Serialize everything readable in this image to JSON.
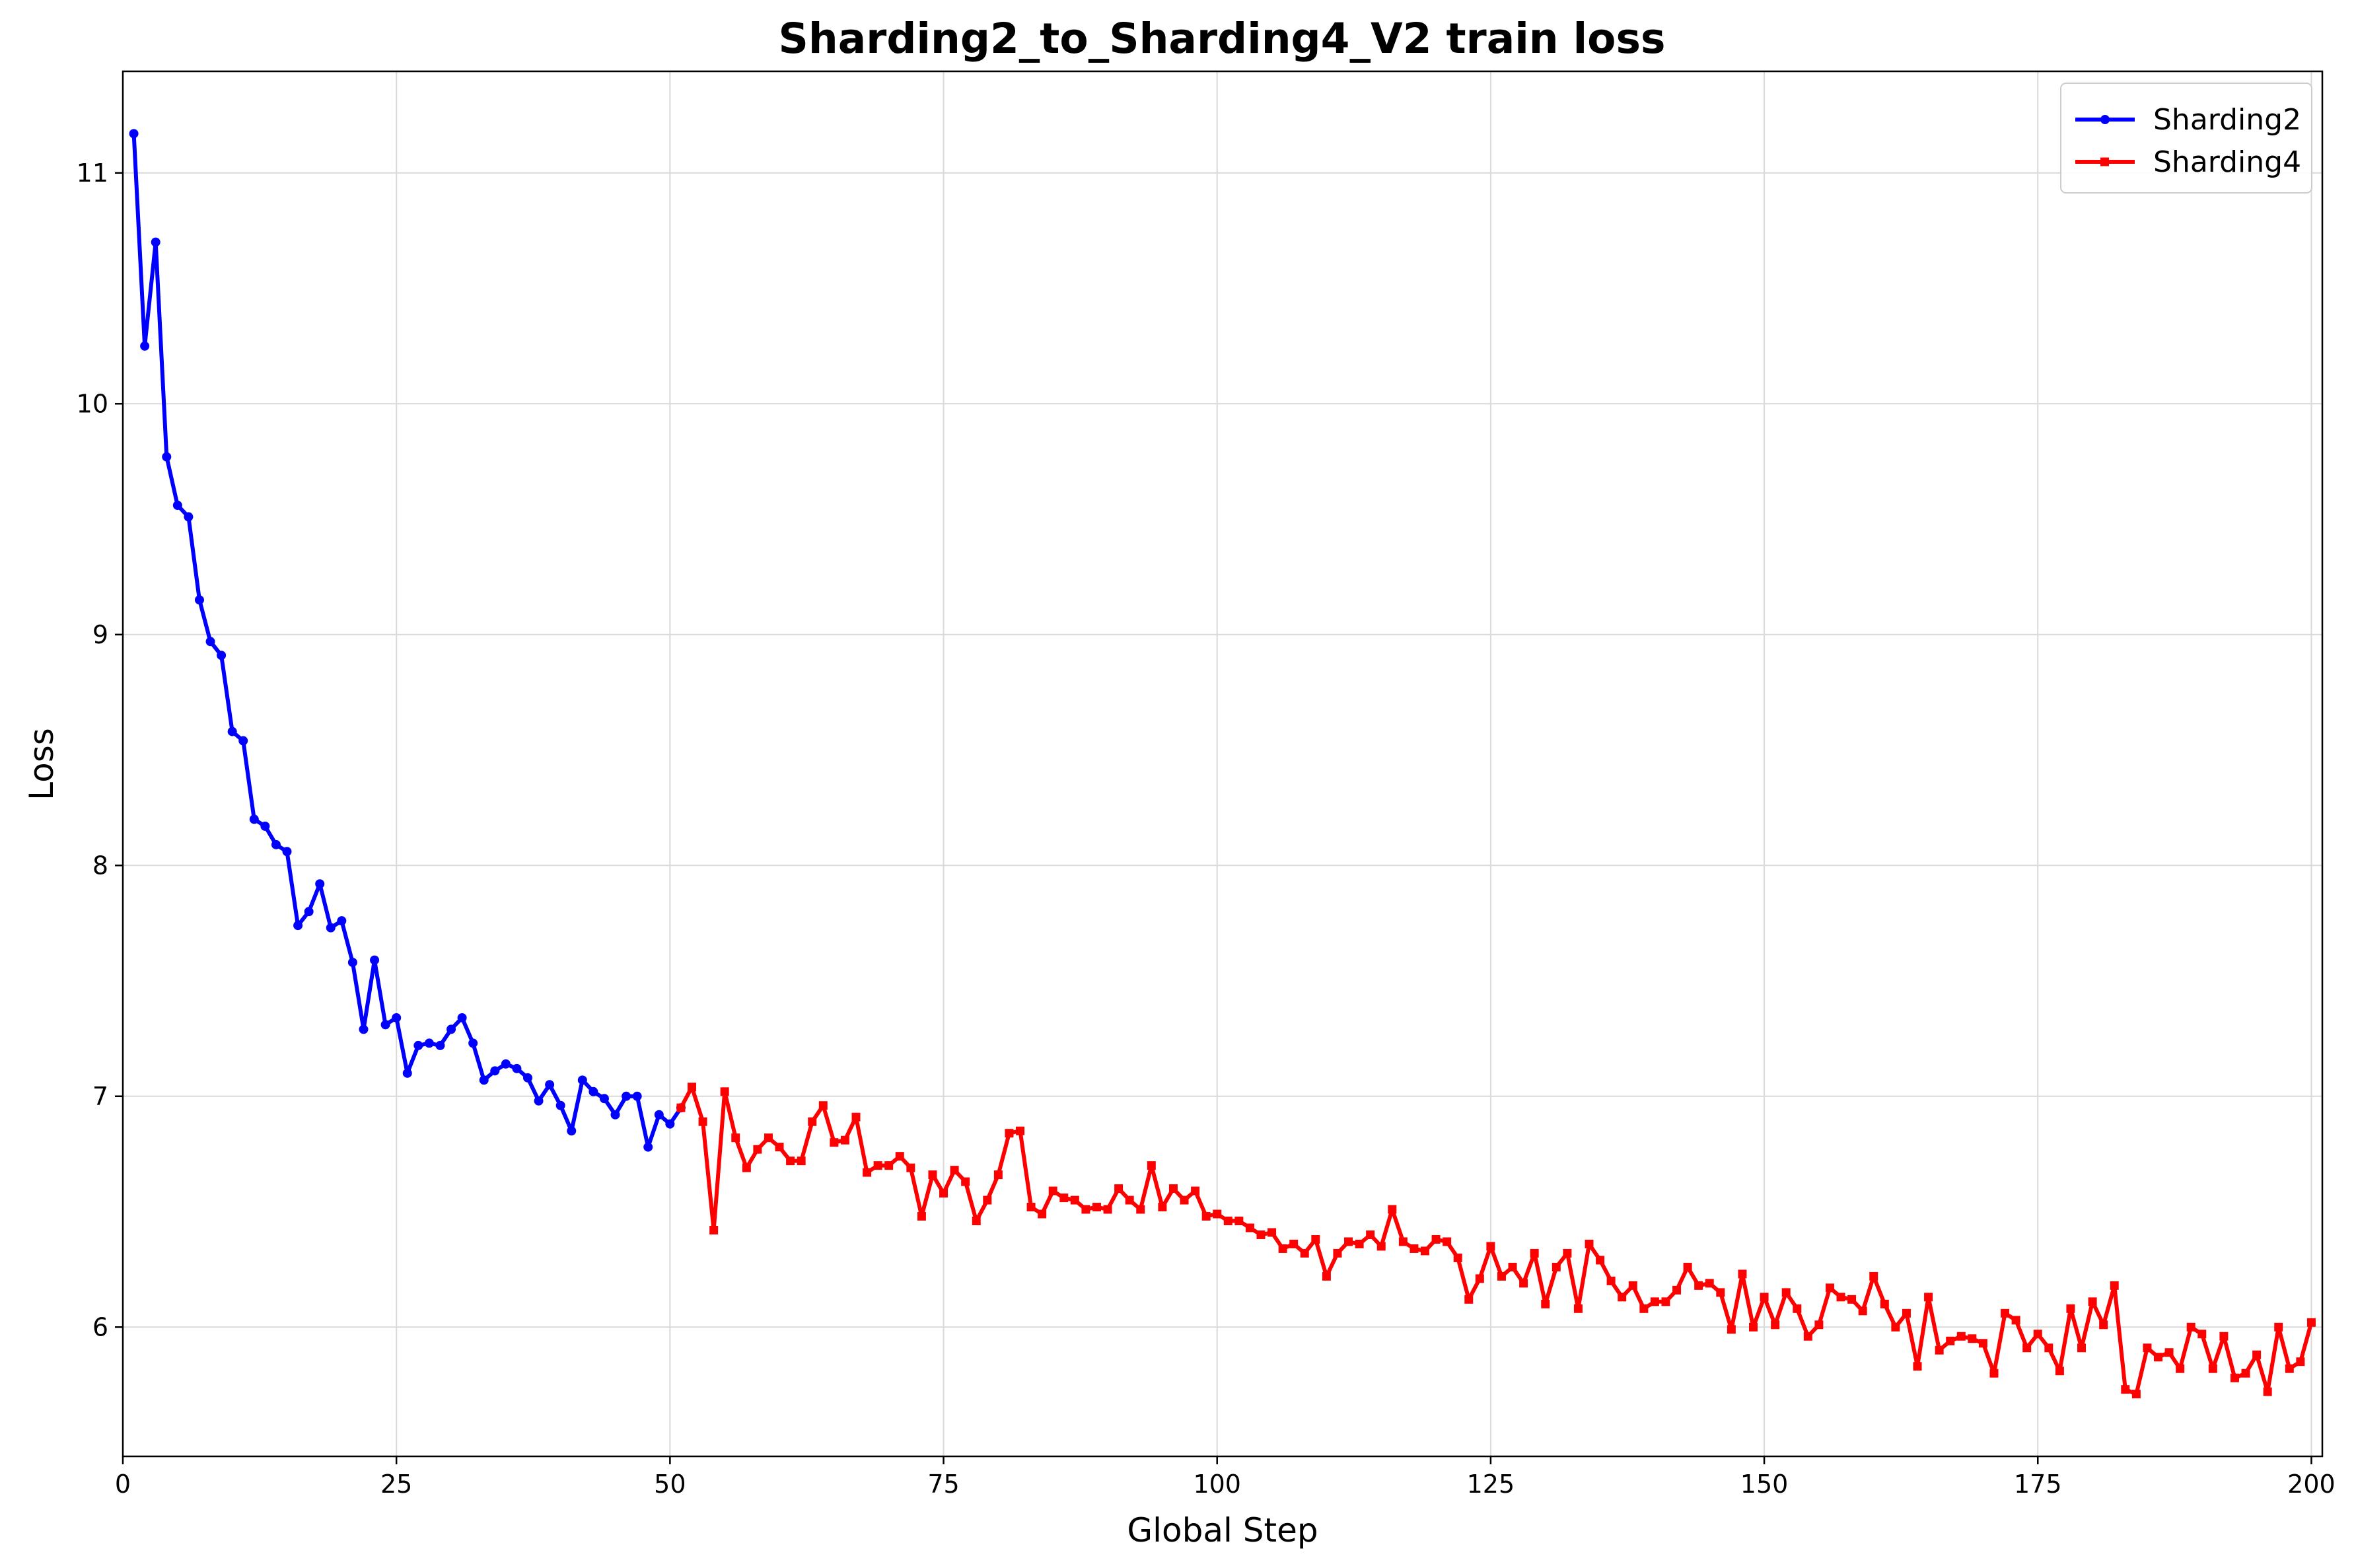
{
  "chart_data": {
    "type": "line",
    "title": "Sharding2_to_Sharding4_V2 train loss",
    "xlabel": "Global Step",
    "ylabel": "Loss",
    "xlim": [
      0,
      201
    ],
    "ylim": [
      5.44,
      11.44
    ],
    "xticks": [
      0,
      25,
      50,
      75,
      100,
      125,
      150,
      175,
      200
    ],
    "yticks": [
      6,
      7,
      8,
      9,
      10,
      11
    ],
    "grid": true,
    "legend_position": "upper right",
    "series": [
      {
        "name": "Sharding2",
        "color": "#0000ff",
        "marker": "circle",
        "x_start": 1,
        "values": [
          11.17,
          10.25,
          10.7,
          9.77,
          9.56,
          9.51,
          9.15,
          8.97,
          8.91,
          8.58,
          8.54,
          8.2,
          8.17,
          8.09,
          8.06,
          7.74,
          7.8,
          7.92,
          7.73,
          7.76,
          7.58,
          7.29,
          7.59,
          7.31,
          7.34,
          7.1,
          7.22,
          7.23,
          7.22,
          7.29,
          7.34,
          7.23,
          7.07,
          7.11,
          7.14,
          7.12,
          7.08,
          6.98,
          7.05,
          6.96,
          6.85,
          7.07,
          7.02,
          6.99,
          6.92,
          7.0,
          7.0,
          6.78,
          6.92,
          6.88,
          6.95
        ]
      },
      {
        "name": "Sharding4",
        "color": "#ff0000",
        "marker": "square",
        "x_start": 51,
        "values": [
          6.95,
          7.04,
          6.89,
          6.42,
          7.02,
          6.82,
          6.69,
          6.77,
          6.82,
          6.78,
          6.72,
          6.72,
          6.89,
          6.96,
          6.8,
          6.81,
          6.91,
          6.67,
          6.7,
          6.7,
          6.74,
          6.69,
          6.48,
          6.66,
          6.58,
          6.68,
          6.63,
          6.46,
          6.55,
          6.66,
          6.84,
          6.85,
          6.52,
          6.49,
          6.59,
          6.56,
          6.55,
          6.51,
          6.52,
          6.51,
          6.6,
          6.55,
          6.51,
          6.7,
          6.52,
          6.6,
          6.55,
          6.59,
          6.48,
          6.49,
          6.46,
          6.46,
          6.43,
          6.4,
          6.41,
          6.34,
          6.36,
          6.32,
          6.38,
          6.22,
          6.32,
          6.37,
          6.36,
          6.4,
          6.35,
          6.51,
          6.37,
          6.34,
          6.33,
          6.38,
          6.37,
          6.3,
          6.12,
          6.21,
          6.35,
          6.22,
          6.26,
          6.19,
          6.32,
          6.1,
          6.26,
          6.32,
          6.08,
          6.36,
          6.29,
          6.2,
          6.13,
          6.18,
          6.08,
          6.11,
          6.11,
          6.16,
          6.26,
          6.18,
          6.19,
          6.15,
          5.99,
          6.23,
          6.0,
          6.13,
          6.01,
          6.15,
          6.08,
          5.96,
          6.01,
          6.17,
          6.13,
          6.12,
          6.07,
          6.22,
          6.1,
          6.0,
          6.06,
          5.83,
          6.13,
          5.9,
          5.94,
          5.96,
          5.95,
          5.93,
          5.8,
          6.06,
          6.03,
          5.91,
          5.97,
          5.91,
          5.81,
          6.08,
          5.91,
          6.11,
          6.01,
          6.18,
          5.73,
          5.71,
          5.91,
          5.87,
          5.89,
          5.82,
          6.0,
          5.97,
          5.82,
          5.96,
          5.78,
          5.8,
          5.88,
          5.72,
          6.0,
          5.82,
          5.85,
          6.02
        ]
      }
    ]
  }
}
